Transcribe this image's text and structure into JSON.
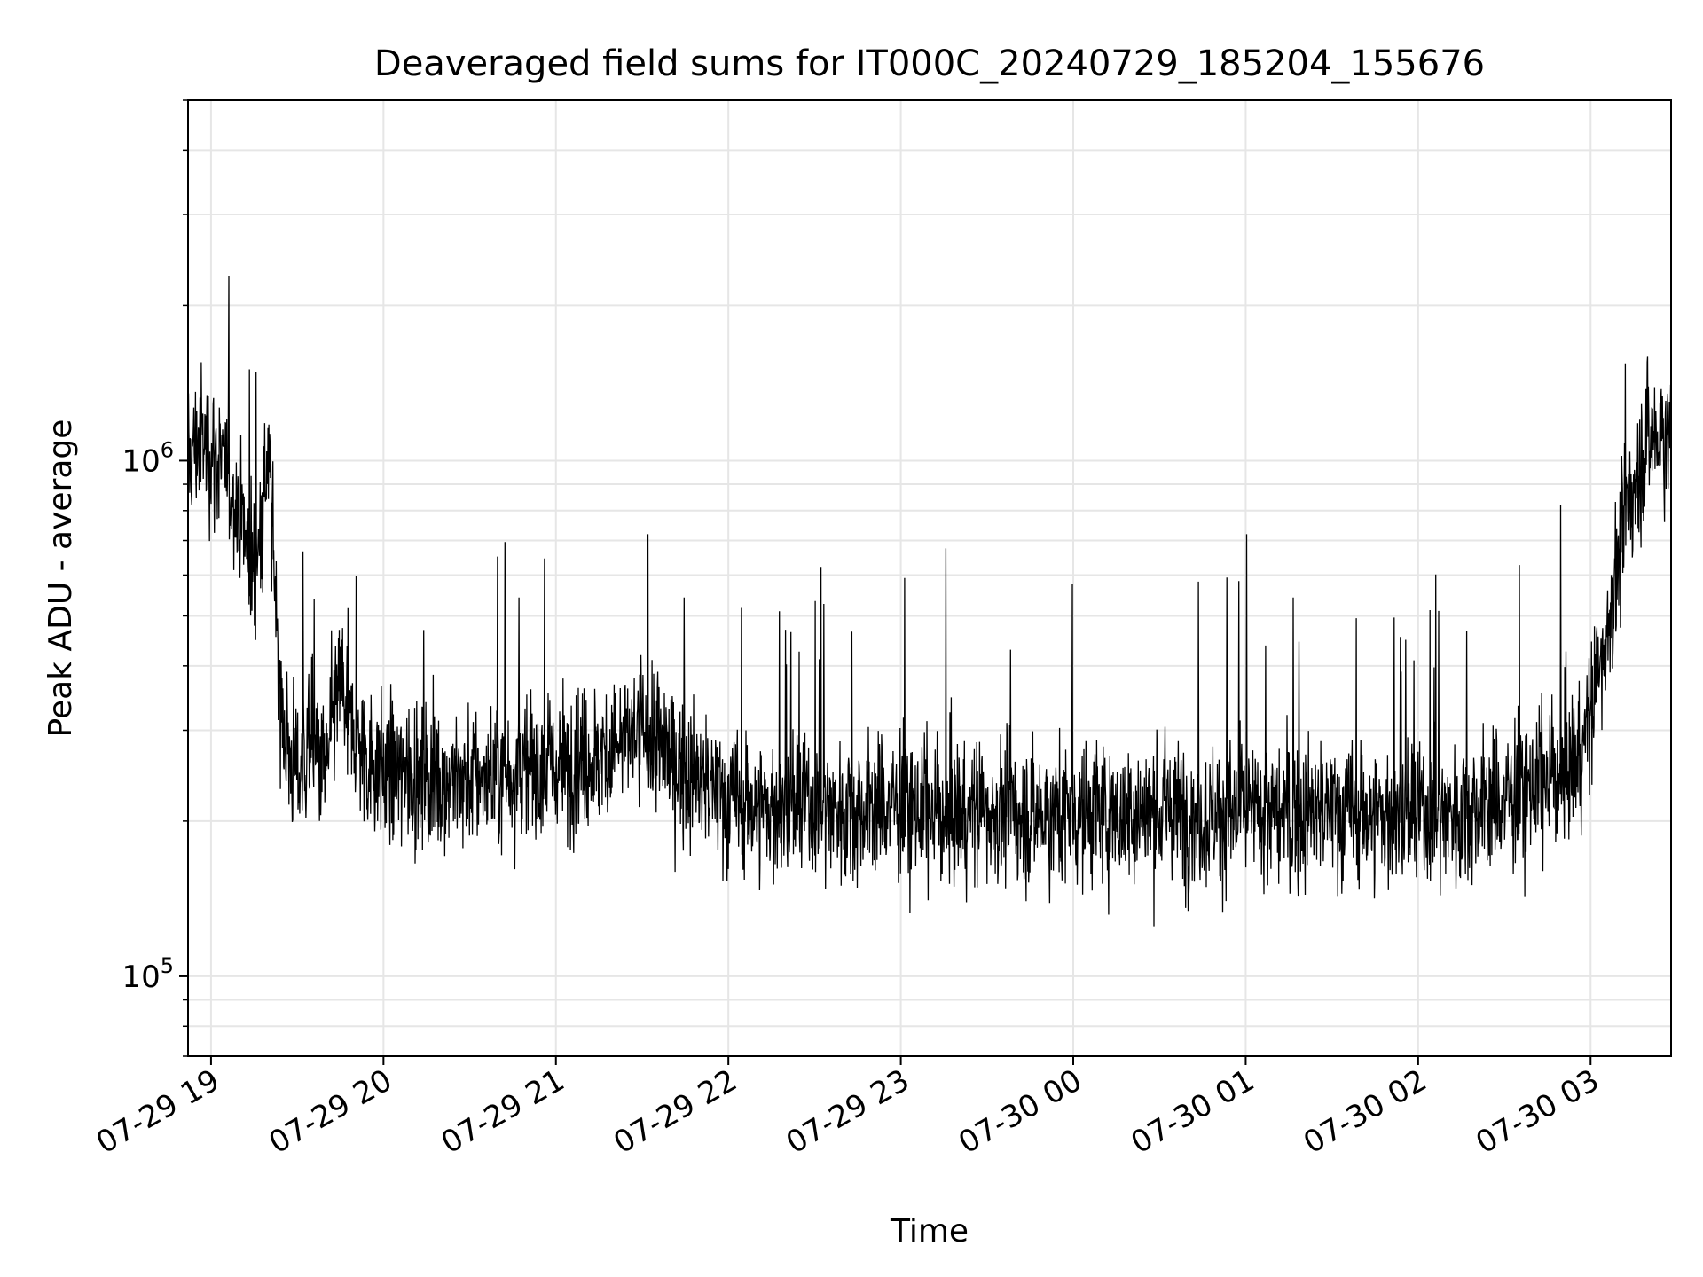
{
  "chart_data": {
    "type": "line",
    "title": "Deaveraged field sums for IT000C_20240729_185204_155676",
    "xlabel": "Time",
    "ylabel": "Peak ADU - average",
    "yscale": "log",
    "ylim": [
      70000,
      5000000
    ],
    "xlim": [
      "07-29 18:52",
      "07-30 03:28"
    ],
    "grid": true,
    "legend": "none",
    "line_color": "#000000",
    "x_ticks": [
      "07-29 19",
      "07-29 20",
      "07-29 21",
      "07-29 22",
      "07-29 23",
      "07-30 00",
      "07-30 01",
      "07-30 02",
      "07-30 03"
    ],
    "y_ticks": [
      {
        "value": 100000,
        "base": "10",
        "exp": "5"
      },
      {
        "value": 1000000,
        "base": "10",
        "exp": "6"
      }
    ],
    "series": [
      {
        "x": [
          "07-29 18:52",
          "07-29 18:56",
          "07-29 19:00",
          "07-29 19:05",
          "07-29 19:10",
          "07-29 19:15",
          "07-29 19:20",
          "07-29 19:25",
          "07-29 19:30",
          "07-29 19:35",
          "07-29 19:40",
          "07-29 19:45",
          "07-29 19:50",
          "07-29 20:00",
          "07-29 20:15",
          "07-29 20:30",
          "07-29 20:45",
          "07-29 21:00",
          "07-29 21:15",
          "07-29 21:30",
          "07-29 21:45",
          "07-29 22:00",
          "07-29 22:15",
          "07-29 22:30",
          "07-29 22:45",
          "07-29 23:00",
          "07-29 23:15",
          "07-29 23:30",
          "07-29 23:45",
          "07-30 00:00",
          "07-30 00:15",
          "07-30 00:30",
          "07-30 00:45",
          "07-30 01:00",
          "07-30 01:15",
          "07-30 01:30",
          "07-30 01:45",
          "07-30 02:00",
          "07-30 02:15",
          "07-30 02:30",
          "07-30 02:45",
          "07-30 02:55",
          "07-30 03:00",
          "07-30 03:05",
          "07-30 03:10",
          "07-30 03:15",
          "07-30 03:20",
          "07-30 03:28"
        ],
        "y": [
          1000000,
          1100000,
          1050000,
          950000,
          800000,
          600000,
          1000000,
          300000,
          250000,
          280000,
          250000,
          380000,
          280000,
          250000,
          245000,
          240000,
          250000,
          255000,
          265000,
          300000,
          250000,
          220000,
          210000,
          215000,
          210000,
          215000,
          205000,
          210000,
          205000,
          210000,
          205000,
          210000,
          205000,
          208000,
          205000,
          210000,
          205000,
          205000,
          210000,
          220000,
          240000,
          260000,
          320000,
          450000,
          650000,
          900000,
          1100000,
          1150000
        ]
      }
    ]
  }
}
